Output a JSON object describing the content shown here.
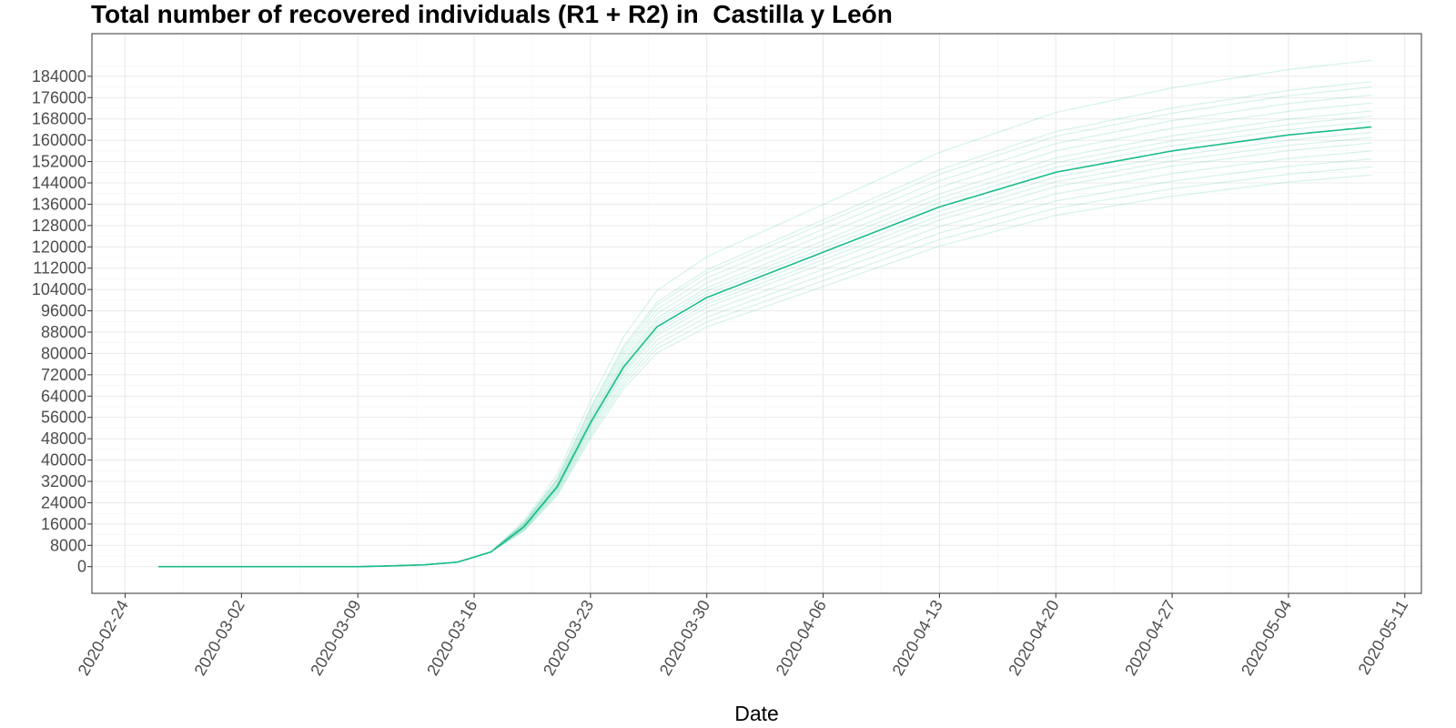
{
  "chart_data": {
    "type": "line",
    "title": "Total number of recovered individuals (R1 + R2) in  Castilla y León",
    "xlabel": "Date",
    "ylabel": "",
    "x_axis": {
      "type": "date",
      "range": [
        "2020-02-22",
        "2020-05-12"
      ],
      "tick_labels": [
        "2020-02-24",
        "2020-03-02",
        "2020-03-09",
        "2020-03-16",
        "2020-03-23",
        "2020-03-30",
        "2020-04-06",
        "2020-04-13",
        "2020-04-20",
        "2020-04-27",
        "2020-05-04",
        "2020-05-11"
      ]
    },
    "y_axis": {
      "range": [
        -10000,
        200000
      ],
      "tick_labels": [
        "0",
        "8000",
        "16000",
        "24000",
        "32000",
        "40000",
        "48000",
        "56000",
        "64000",
        "72000",
        "80000",
        "88000",
        "96000",
        "104000",
        "112000",
        "120000",
        "128000",
        "136000",
        "144000",
        "152000",
        "160000",
        "168000",
        "176000",
        "184000"
      ]
    },
    "grid": true,
    "colors": {
      "line": "#1abc8c",
      "grid": "#ebebeb",
      "frame": "#333333"
    },
    "main_series": {
      "dates": [
        "2020-02-26",
        "2020-03-09",
        "2020-03-11",
        "2020-03-13",
        "2020-03-15",
        "2020-03-17",
        "2020-03-19",
        "2020-03-21",
        "2020-03-23",
        "2020-03-25",
        "2020-03-27",
        "2020-03-30",
        "2020-04-06",
        "2020-04-13",
        "2020-04-20",
        "2020-04-27",
        "2020-05-04",
        "2020-05-09"
      ],
      "values": [
        0,
        0,
        300,
        700,
        1700,
        5500,
        15000,
        30000,
        54000,
        75000,
        90000,
        101000,
        118000,
        135000,
        148000,
        156000,
        162000,
        165000
      ]
    },
    "band_series_final_values": [
      147000,
      150000,
      153000,
      156000,
      159000,
      161000,
      163000,
      165000,
      167000,
      169000,
      171000,
      174000,
      177000,
      180000,
      182000,
      190000
    ]
  }
}
